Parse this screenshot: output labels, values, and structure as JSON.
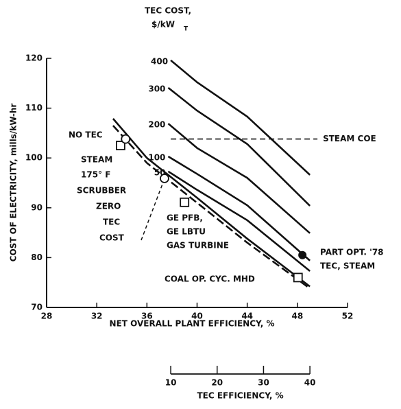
{
  "chart_data": {
    "type": "line",
    "tec_cost_title": "TEC COST,",
    "tec_cost_unit": "$/kW",
    "tec_cost_unit_sub": "T",
    "xlabel": "NET OVERALL PLANT EFFICIENCY, %",
    "ylabel": "COST OF ELECTRICITY, mills/kW-hr",
    "xlim": [
      28,
      52
    ],
    "xticks": [
      28,
      32,
      36,
      40,
      44,
      48,
      52
    ],
    "ylim": [
      70,
      120
    ],
    "yticks": [
      70,
      80,
      90,
      100,
      110,
      120
    ],
    "series": [
      {
        "name": "400",
        "color": "#111",
        "x": [
          37.9,
          40,
          44,
          49
        ],
        "values": [
          119.6,
          115.2,
          108.3,
          96.6
        ]
      },
      {
        "name": "300",
        "color": "#111",
        "x": [
          37.7,
          40,
          44,
          49
        ],
        "values": [
          114.1,
          109.5,
          102.8,
          90.4
        ]
      },
      {
        "name": "200",
        "color": "#111",
        "x": [
          37.7,
          40,
          44,
          49
        ],
        "values": [
          106.9,
          102,
          96,
          84.9
        ]
      },
      {
        "name": "100",
        "color": "#111",
        "x": [
          37.7,
          40,
          44,
          49
        ],
        "values": [
          100.3,
          96.8,
          90.5,
          79.4
        ]
      },
      {
        "name": "50",
        "color": "#111",
        "x": [
          37.7,
          40,
          44,
          49
        ],
        "values": [
          97.3,
          93.6,
          87.5,
          77.3
        ]
      },
      {
        "color": "#111",
        "x": [
          33.3,
          36,
          40,
          44,
          49
        ],
        "values": [
          107.9,
          100,
          92,
          83.8,
          74.2
        ]
      },
      {
        "color": "#111",
        "dashed": true,
        "x": [
          33.3,
          36,
          40,
          44,
          49
        ],
        "values": [
          106.5,
          99,
          91,
          83,
          73.8
        ]
      }
    ],
    "squares": {
      "x": [
        33.9,
        39,
        48.05
      ],
      "values": [
        102.5,
        91.1,
        76
      ]
    },
    "open_circles": {
      "x": [
        34.3,
        37.4
      ],
      "values": [
        103.8,
        95.9
      ]
    },
    "filled_circles": {
      "x": [
        48.4
      ],
      "values": [
        80.5
      ]
    },
    "steam_coe": {
      "label": "STEAM COE",
      "value": 103.8,
      "x": [
        37.9,
        49.6
      ]
    },
    "annotations": [
      "NO TEC",
      "STEAM",
      "175° F",
      "SCRUBBER",
      "ZERO",
      "TEC",
      "COST",
      "GE PFB,",
      "GE LBTU",
      "GAS TURBINE",
      "COAL OP. CYC. MHD",
      "PART OPT. '78",
      "TEC, STEAM"
    ],
    "x2": {
      "label": "TEC EFFICIENCY, %",
      "lim": [
        10,
        40
      ],
      "span_on_x": [
        37.9,
        49
      ],
      "ticks": [
        10,
        20,
        30,
        40
      ]
    }
  }
}
